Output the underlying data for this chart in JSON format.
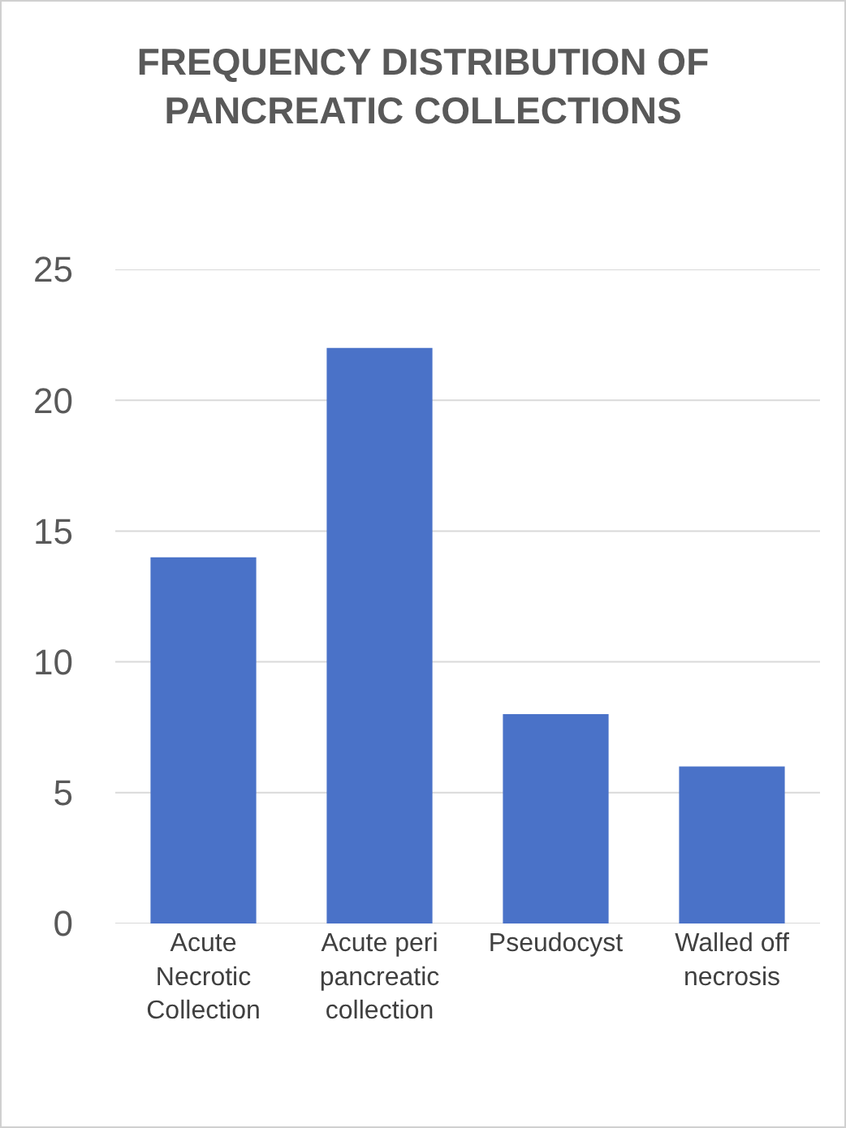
{
  "chart_data": {
    "type": "bar",
    "title": "FREQUENCY DISTRIBUTION OF PANCREATIC COLLECTIONS",
    "categories": [
      "Acute Necrotic Collection",
      "Acute peri pancreatic collection",
      "Pseudocyst",
      "Walled off necrosis"
    ],
    "values": [
      14,
      22,
      8,
      6
    ],
    "color": "#4a72c8",
    "ylim": [
      0,
      25
    ],
    "yticks": [
      0,
      5,
      10,
      15,
      20,
      25
    ],
    "grid": "y"
  }
}
